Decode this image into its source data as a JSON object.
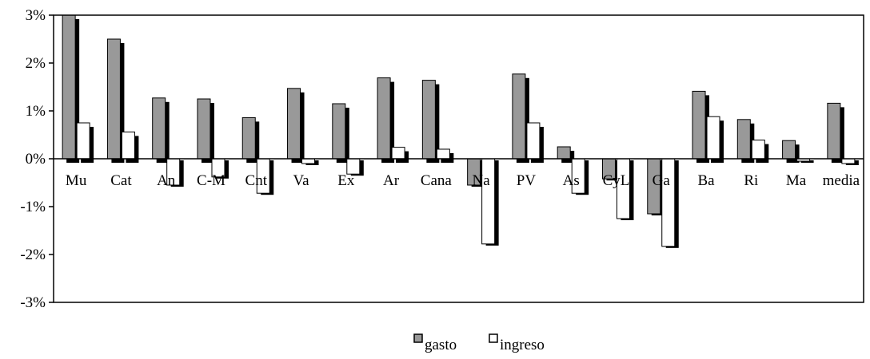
{
  "chart_data": {
    "type": "bar",
    "title": "",
    "xlabel": "",
    "ylabel": "",
    "ylim": [
      -3,
      3
    ],
    "y_ticks": [
      3,
      2,
      1,
      0,
      -1,
      -2,
      -3
    ],
    "y_tick_labels": [
      "3%",
      "2%",
      "1%",
      "0%",
      "-1%",
      "-2%",
      "-3%"
    ],
    "categories": [
      "Mu",
      "Cat",
      "An",
      "C-M",
      "Cnt",
      "Va",
      "Ex",
      "Ar",
      "Cana",
      "Na",
      "PV",
      "As",
      "CyL",
      "Ga",
      "Ba",
      "Ri",
      "Ma",
      "media"
    ],
    "series": [
      {
        "name": "gasto",
        "color": "#999999",
        "values": [
          3.0,
          2.5,
          1.27,
          1.25,
          0.86,
          1.47,
          1.15,
          1.69,
          1.64,
          -0.55,
          1.77,
          0.25,
          -0.42,
          -1.15,
          1.41,
          0.82,
          0.38,
          1.16
        ]
      },
      {
        "name": "ingreso",
        "color": "#ffffff",
        "values": [
          0.75,
          0.56,
          -0.55,
          -0.38,
          -0.72,
          -0.1,
          -0.32,
          0.24,
          0.2,
          -1.78,
          0.75,
          -0.72,
          -1.25,
          -1.83,
          0.88,
          0.39,
          -0.05,
          -0.1
        ]
      }
    ],
    "grid": false,
    "legend_position": "bottom-center",
    "shadow_color": "#000000"
  }
}
